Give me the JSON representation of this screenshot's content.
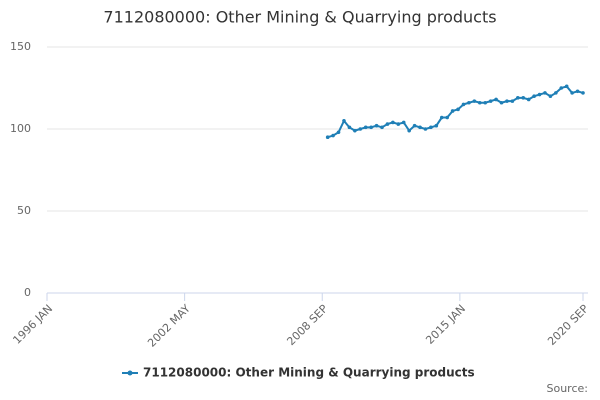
{
  "chart_data": {
    "type": "line",
    "title": "7112080000: Other Mining & Quarrying products",
    "source": "Source:",
    "x": [
      "2008-12",
      "2009-03",
      "2009-06",
      "2009-09",
      "2009-12",
      "2010-03",
      "2010-06",
      "2010-09",
      "2010-12",
      "2011-03",
      "2011-06",
      "2011-09",
      "2011-12",
      "2012-03",
      "2012-06",
      "2012-09",
      "2012-12",
      "2013-03",
      "2013-06",
      "2013-09",
      "2013-12",
      "2014-03",
      "2014-06",
      "2014-09",
      "2014-12",
      "2015-03",
      "2015-06",
      "2015-09",
      "2015-12",
      "2016-03",
      "2016-06",
      "2016-09",
      "2016-12",
      "2017-03",
      "2017-06",
      "2017-09",
      "2017-12",
      "2018-03",
      "2018-06",
      "2018-09",
      "2018-12",
      "2019-03",
      "2019-06",
      "2019-09",
      "2019-12",
      "2020-03",
      "2020-06",
      "2020-09"
    ],
    "series": [
      {
        "name": "7112080000: Other Mining & Quarrying products",
        "color": "#1f7fb6",
        "values": [
          95,
          96,
          98,
          105,
          101,
          99,
          100,
          101,
          101,
          102,
          101,
          103,
          104,
          103,
          104,
          99,
          102,
          101,
          100,
          101,
          102,
          107,
          107,
          111,
          112,
          115,
          116,
          117,
          116,
          116,
          117,
          118,
          116,
          117,
          117,
          119,
          119,
          118,
          120,
          121,
          122,
          120,
          122,
          125,
          126,
          122,
          123,
          122
        ]
      }
    ],
    "xlim": [
      "1996-01",
      "2020-09"
    ],
    "xticks": [
      {
        "value": "1996-01",
        "label": "1996 JAN"
      },
      {
        "value": "2002-05",
        "label": "2002 MAY"
      },
      {
        "value": "2008-09",
        "label": "2008 SEP"
      },
      {
        "value": "2015-01",
        "label": "2015 JAN"
      },
      {
        "value": "2020-09",
        "label": "2020 SEP"
      }
    ],
    "ylim": [
      0,
      150
    ],
    "yticks": [
      0,
      50,
      100,
      150
    ],
    "grid": true,
    "legend": "bottom"
  }
}
